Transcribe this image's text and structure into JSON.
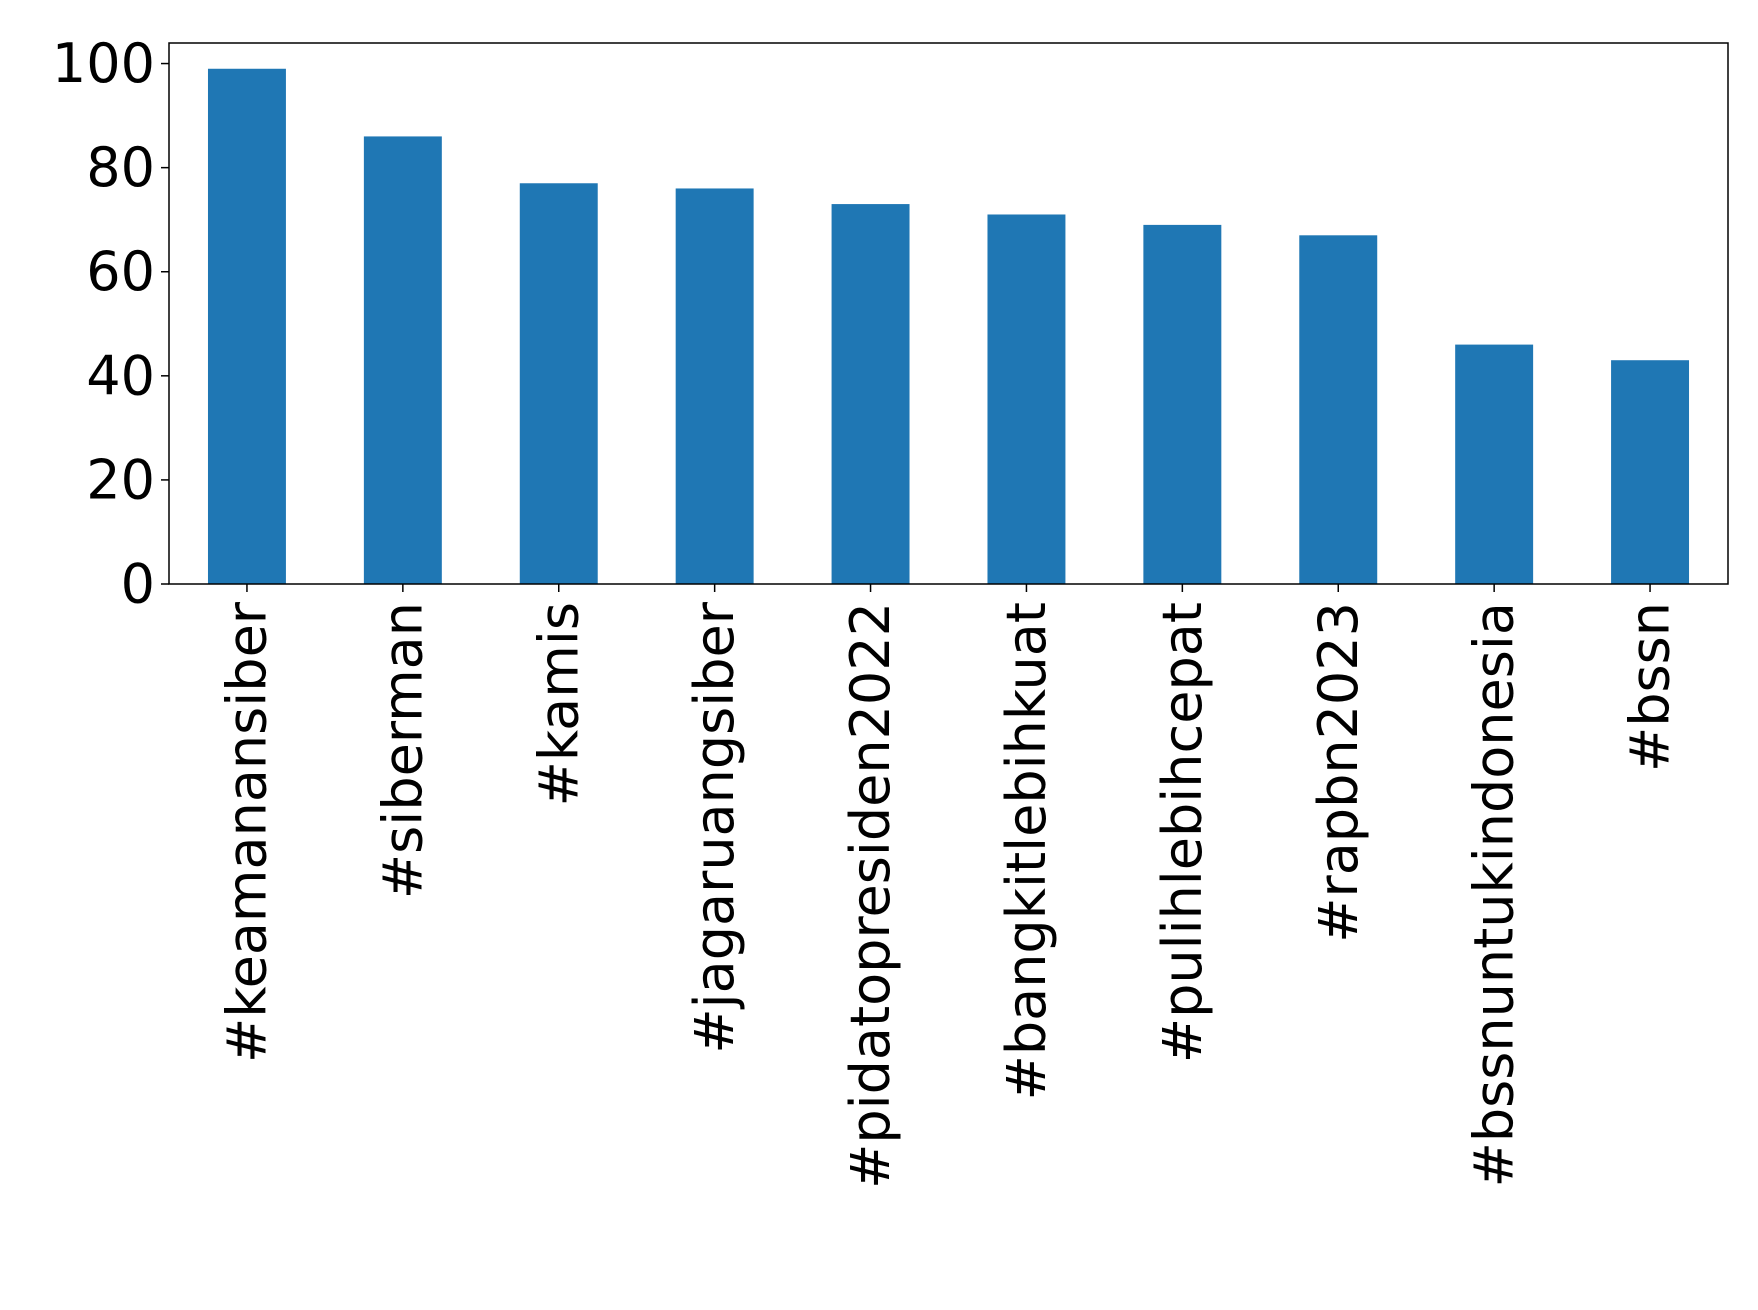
{
  "chart_data": {
    "type": "bar",
    "categories": [
      "#keamanansiber",
      "#siberman",
      "#kamis",
      "#jagaruangsiber",
      "#pidatopresiden2022",
      "#bangkitlebihkuat",
      "#pulihlebihcepat",
      "#rapbn2023",
      "#bssnuntukindonesia",
      "#bssn"
    ],
    "values": [
      99,
      86,
      77,
      76,
      73,
      71,
      69,
      67,
      46,
      43
    ],
    "color": "#1f77b4",
    "ylim": [
      0,
      103.95
    ],
    "yticks": [
      0,
      20,
      40,
      60,
      80,
      100
    ],
    "grid": false
  }
}
